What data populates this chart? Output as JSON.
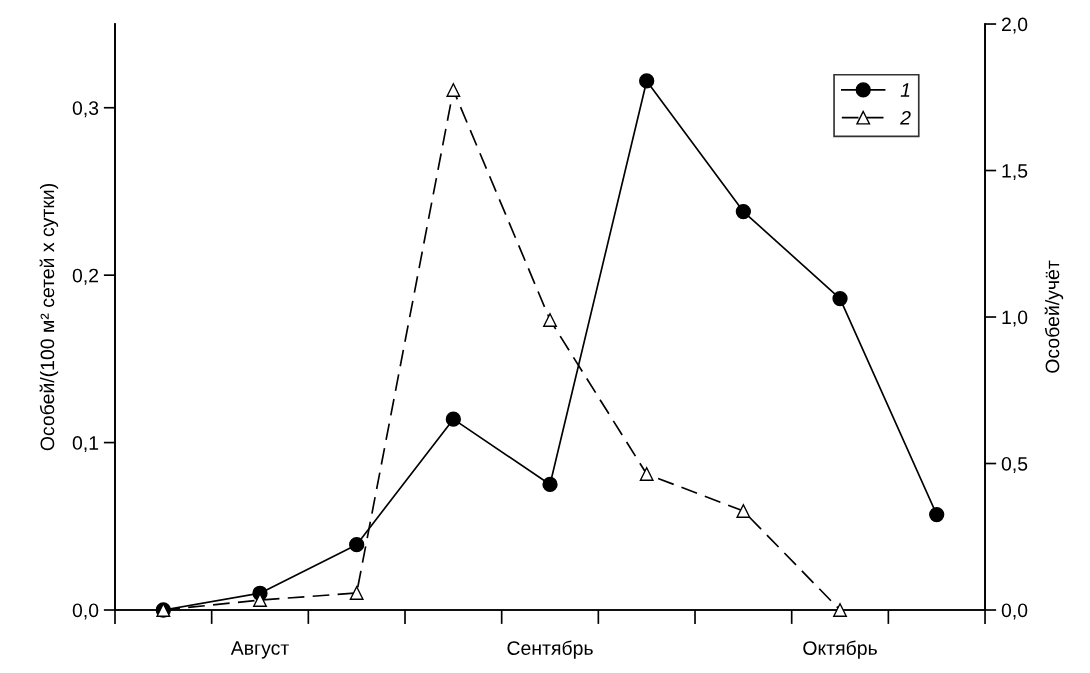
{
  "chart_data": {
    "type": "line",
    "xlabel": null,
    "ylabel": "Особей/(100 м² сетей х сутки)",
    "y2label": "Особей/учёт",
    "categories": [
      null,
      "Август",
      null,
      null,
      "Сентябрь",
      null,
      null,
      "Октябрь",
      null
    ],
    "ylim": [
      0,
      0.35
    ],
    "yticks": [
      {
        "value": 0,
        "label": "0,0"
      },
      {
        "value": 0.1,
        "label": "0,1"
      },
      {
        "value": 0.2,
        "label": "0,2"
      },
      {
        "value": 0.3,
        "label": "0,3"
      }
    ],
    "y2lim": [
      0,
      2.0
    ],
    "y2ticks": [
      {
        "value": 0,
        "label": "0,0"
      },
      {
        "value": 0.5,
        "label": "0,5"
      },
      {
        "value": 1.0,
        "label": "1,0"
      },
      {
        "value": 1.5,
        "label": "1,5"
      },
      {
        "value": 2.0,
        "label": "2,0"
      }
    ],
    "series": [
      {
        "name": "1",
        "color": "#000000",
        "marker": "circle",
        "line_style": "solid",
        "values": [
          0.0,
          0.01,
          0.039,
          0.114,
          0.075,
          0.316,
          0.238,
          0.186,
          0.057
        ]
      },
      {
        "name": "2",
        "color": "#000000",
        "marker": "triangle",
        "line_style": "dashed",
        "axis": "y2",
        "values": [
          0.0,
          0.034,
          0.058,
          1.775,
          0.99,
          0.464,
          0.338,
          0.0,
          null
        ]
      }
    ],
    "legend": "top right",
    "grid": false
  }
}
